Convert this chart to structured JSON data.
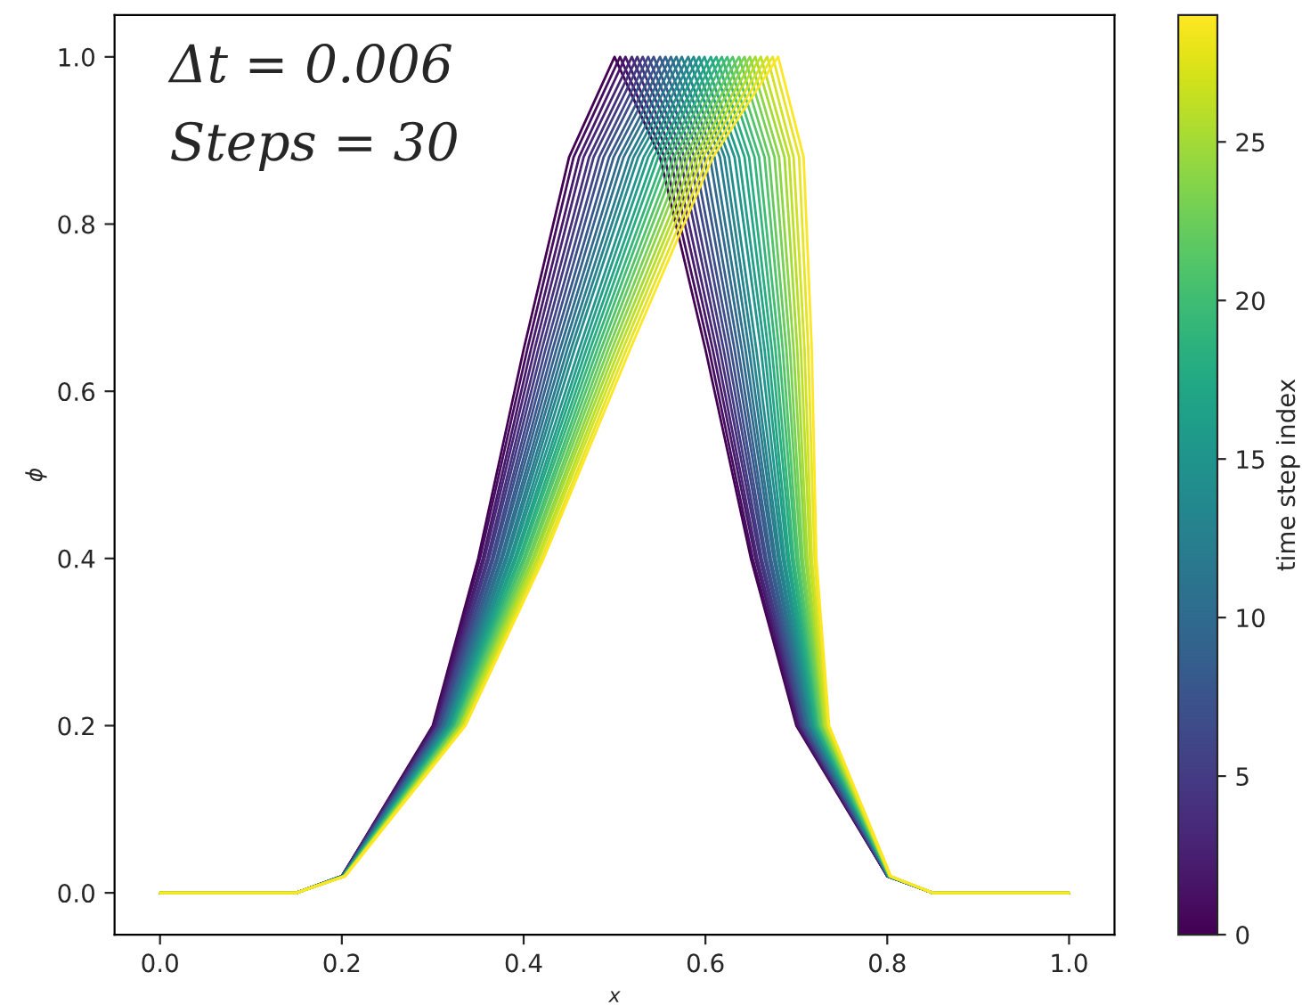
{
  "chart_data": {
    "type": "line",
    "xlabel": "x",
    "ylabel": "ϕ",
    "clabel": "time step index",
    "annotations": [
      "Δt = 0.006",
      "Steps = 30"
    ],
    "xlim": [
      -0.05,
      1.05
    ],
    "ylim": [
      -0.05,
      1.05
    ],
    "xticks": [
      {
        "value": 0,
        "label": "0.0"
      },
      0.2,
      0.4,
      0.6,
      0.8,
      {
        "value": 1,
        "label": "1.0"
      }
    ],
    "yticks": [
      {
        "value": 0,
        "label": "0.0"
      },
      0.2,
      0.4,
      0.6,
      0.8,
      {
        "value": 1,
        "label": "1.0"
      }
    ],
    "clim": [
      0,
      29
    ],
    "cticks": [
      0,
      5,
      10,
      15,
      20,
      25
    ],
    "grid": false,
    "series": [
      {
        "color": "#440154",
        "x": [
          0,
          0.15,
          0.2,
          0.3,
          0.35,
          0.4,
          0.45,
          0.5,
          0.55,
          0.6,
          0.65,
          0.7,
          0.8,
          0.85,
          1
        ],
        "values": [
          0,
          0,
          0.02,
          0.2,
          0.4,
          0.65,
          0.88,
          1.0,
          0.88,
          0.65,
          0.4,
          0.2,
          0.02,
          0,
          0
        ]
      },
      {
        "color": "#450d5f",
        "x": [
          0,
          0.15,
          0.2,
          0.301,
          0.352,
          0.404,
          0.455,
          0.506,
          0.555,
          0.604,
          0.652,
          0.701,
          0.8,
          0.85,
          1
        ],
        "values": [
          0,
          0,
          0.02,
          0.2,
          0.4,
          0.65,
          0.88,
          1.0,
          0.88,
          0.65,
          0.4,
          0.2,
          0.02,
          0,
          0
        ]
      },
      {
        "color": "#47196b",
        "x": [
          0,
          0.15,
          0.2,
          0.302,
          0.355,
          0.408,
          0.461,
          0.512,
          0.561,
          0.608,
          0.655,
          0.702,
          0.8,
          0.85,
          1
        ],
        "values": [
          0,
          0,
          0.02,
          0.2,
          0.4,
          0.65,
          0.88,
          1.0,
          0.88,
          0.65,
          0.4,
          0.2,
          0.02,
          0,
          0
        ]
      },
      {
        "color": "#482576",
        "x": [
          0,
          0.15,
          0.2,
          0.304,
          0.357,
          0.412,
          0.466,
          0.519,
          0.566,
          0.612,
          0.657,
          0.704,
          0.8,
          0.85,
          1
        ],
        "values": [
          0,
          0,
          0.02,
          0.2,
          0.4,
          0.65,
          0.88,
          1.0,
          0.88,
          0.65,
          0.4,
          0.2,
          0.02,
          0,
          0
        ]
      },
      {
        "color": "#45307c",
        "x": [
          0,
          0.15,
          0.2,
          0.305,
          0.36,
          0.416,
          0.472,
          0.525,
          0.572,
          0.616,
          0.66,
          0.705,
          0.8,
          0.85,
          1
        ],
        "values": [
          0,
          0,
          0.02,
          0.2,
          0.4,
          0.65,
          0.88,
          1.0,
          0.88,
          0.65,
          0.4,
          0.2,
          0.02,
          0,
          0
        ]
      },
      {
        "color": "#433b82",
        "x": [
          0,
          0.15,
          0.201,
          0.306,
          0.362,
          0.42,
          0.477,
          0.531,
          0.577,
          0.62,
          0.662,
          0.706,
          0.801,
          0.85,
          1
        ],
        "values": [
          0,
          0,
          0.02,
          0.2,
          0.4,
          0.65,
          0.88,
          1.0,
          0.88,
          0.65,
          0.4,
          0.2,
          0.02,
          0,
          0
        ]
      },
      {
        "color": "#404687",
        "x": [
          0,
          0.15,
          0.201,
          0.307,
          0.365,
          0.424,
          0.483,
          0.537,
          0.583,
          0.624,
          0.665,
          0.707,
          0.801,
          0.85,
          1
        ],
        "values": [
          0,
          0,
          0.02,
          0.2,
          0.4,
          0.65,
          0.88,
          1.0,
          0.88,
          0.65,
          0.4,
          0.2,
          0.02,
          0,
          0
        ]
      },
      {
        "color": "#3c4f89",
        "x": [
          0,
          0.15,
          0.201,
          0.309,
          0.367,
          0.428,
          0.488,
          0.543,
          0.588,
          0.628,
          0.667,
          0.709,
          0.801,
          0.85,
          1
        ],
        "values": [
          0,
          0,
          0.02,
          0.2,
          0.4,
          0.65,
          0.88,
          1.0,
          0.88,
          0.65,
          0.4,
          0.2,
          0.02,
          0,
          0
        ]
      },
      {
        "color": "#38588c",
        "x": [
          0,
          0.15,
          0.201,
          0.31,
          0.37,
          0.432,
          0.494,
          0.55,
          0.594,
          0.632,
          0.67,
          0.71,
          0.801,
          0.85,
          1
        ],
        "values": [
          0,
          0,
          0.02,
          0.2,
          0.4,
          0.65,
          0.88,
          1.0,
          0.88,
          0.65,
          0.4,
          0.2,
          0.02,
          0,
          0
        ]
      },
      {
        "color": "#34628d",
        "x": [
          0,
          0.15,
          0.201,
          0.311,
          0.372,
          0.436,
          0.499,
          0.556,
          0.599,
          0.636,
          0.672,
          0.711,
          0.801,
          0.85,
          1
        ],
        "values": [
          0,
          0,
          0.02,
          0.2,
          0.4,
          0.65,
          0.88,
          1.0,
          0.88,
          0.65,
          0.4,
          0.2,
          0.02,
          0,
          0
        ]
      },
      {
        "color": "#306a8d",
        "x": [
          0,
          0.15,
          0.201,
          0.312,
          0.375,
          0.44,
          0.505,
          0.562,
          0.605,
          0.64,
          0.675,
          0.712,
          0.801,
          0.85,
          1
        ],
        "values": [
          0,
          0,
          0.02,
          0.2,
          0.4,
          0.65,
          0.88,
          1.0,
          0.88,
          0.65,
          0.4,
          0.2,
          0.02,
          0,
          0
        ]
      },
      {
        "color": "#2c738e",
        "x": [
          0,
          0.15,
          0.201,
          0.314,
          0.377,
          0.444,
          0.51,
          0.568,
          0.61,
          0.644,
          0.677,
          0.714,
          0.801,
          0.85,
          1
        ],
        "values": [
          0,
          0,
          0.02,
          0.2,
          0.4,
          0.65,
          0.88,
          1.0,
          0.88,
          0.65,
          0.4,
          0.2,
          0.02,
          0,
          0
        ]
      },
      {
        "color": "#297b8e",
        "x": [
          0,
          0.15,
          0.201,
          0.315,
          0.38,
          0.448,
          0.516,
          0.574,
          0.616,
          0.648,
          0.68,
          0.715,
          0.801,
          0.85,
          1
        ],
        "values": [
          0,
          0,
          0.02,
          0.2,
          0.4,
          0.65,
          0.88,
          1.0,
          0.88,
          0.65,
          0.4,
          0.2,
          0.02,
          0,
          0
        ]
      },
      {
        "color": "#26848d",
        "x": [
          0,
          0.15,
          0.202,
          0.316,
          0.382,
          0.452,
          0.521,
          0.581,
          0.621,
          0.652,
          0.682,
          0.716,
          0.802,
          0.85,
          1
        ],
        "values": [
          0,
          0,
          0.02,
          0.2,
          0.4,
          0.65,
          0.88,
          1.0,
          0.88,
          0.65,
          0.4,
          0.2,
          0.02,
          0,
          0
        ]
      },
      {
        "color": "#228d8c",
        "x": [
          0,
          0.15,
          0.202,
          0.317,
          0.385,
          0.456,
          0.526,
          0.587,
          0.626,
          0.656,
          0.685,
          0.717,
          0.802,
          0.85,
          1
        ],
        "values": [
          0,
          0,
          0.02,
          0.2,
          0.4,
          0.65,
          0.88,
          1.0,
          0.88,
          0.65,
          0.4,
          0.2,
          0.02,
          0,
          0
        ]
      },
      {
        "color": "#21958b",
        "x": [
          0,
          0.15,
          0.202,
          0.319,
          0.387,
          0.461,
          0.532,
          0.593,
          0.632,
          0.661,
          0.687,
          0.719,
          0.802,
          0.85,
          1
        ],
        "values": [
          0,
          0,
          0.02,
          0.2,
          0.4,
          0.65,
          0.88,
          1.0,
          0.88,
          0.65,
          0.4,
          0.2,
          0.02,
          0,
          0
        ]
      },
      {
        "color": "#229d88",
        "x": [
          0,
          0.15,
          0.202,
          0.32,
          0.39,
          0.465,
          0.537,
          0.599,
          0.637,
          0.665,
          0.69,
          0.72,
          0.802,
          0.85,
          1
        ],
        "values": [
          0,
          0,
          0.02,
          0.2,
          0.4,
          0.65,
          0.88,
          1.0,
          0.88,
          0.65,
          0.4,
          0.2,
          0.02,
          0,
          0
        ]
      },
      {
        "color": "#22a585",
        "x": [
          0,
          0.15,
          0.202,
          0.321,
          0.392,
          0.469,
          0.543,
          0.606,
          0.643,
          0.669,
          0.692,
          0.721,
          0.802,
          0.85,
          1
        ],
        "values": [
          0,
          0,
          0.02,
          0.2,
          0.4,
          0.65,
          0.88,
          1.0,
          0.88,
          0.65,
          0.4,
          0.2,
          0.02,
          0,
          0
        ]
      },
      {
        "color": "#29ad80",
        "x": [
          0,
          0.15,
          0.202,
          0.322,
          0.395,
          0.473,
          0.548,
          0.612,
          0.648,
          0.673,
          0.695,
          0.722,
          0.802,
          0.85,
          1
        ],
        "values": [
          0,
          0,
          0.02,
          0.2,
          0.4,
          0.65,
          0.88,
          1.0,
          0.88,
          0.65,
          0.4,
          0.2,
          0.02,
          0,
          0
        ]
      },
      {
        "color": "#35b579",
        "x": [
          0,
          0.15,
          0.202,
          0.324,
          0.397,
          0.477,
          0.554,
          0.618,
          0.654,
          0.677,
          0.697,
          0.724,
          0.802,
          0.85,
          1
        ],
        "values": [
          0,
          0,
          0.02,
          0.2,
          0.4,
          0.65,
          0.88,
          1.0,
          0.88,
          0.65,
          0.4,
          0.2,
          0.02,
          0,
          0
        ]
      },
      {
        "color": "#40bd72",
        "x": [
          0,
          0.15,
          0.202,
          0.325,
          0.4,
          0.481,
          0.559,
          0.624,
          0.659,
          0.681,
          0.7,
          0.725,
          0.802,
          0.85,
          1
        ],
        "values": [
          0,
          0,
          0.02,
          0.2,
          0.4,
          0.65,
          0.88,
          1.0,
          0.88,
          0.65,
          0.4,
          0.2,
          0.02,
          0,
          0
        ]
      },
      {
        "color": "#51c368",
        "x": [
          0,
          0.15,
          0.203,
          0.326,
          0.402,
          0.485,
          0.565,
          0.63,
          0.665,
          0.685,
          0.702,
          0.726,
          0.803,
          0.85,
          1
        ],
        "values": [
          0,
          0,
          0.02,
          0.2,
          0.4,
          0.65,
          0.88,
          1.0,
          0.88,
          0.65,
          0.4,
          0.2,
          0.02,
          0,
          0
        ]
      },
      {
        "color": "#64ca5e",
        "x": [
          0,
          0.15,
          0.203,
          0.327,
          0.405,
          0.489,
          0.57,
          0.637,
          0.67,
          0.689,
          0.705,
          0.727,
          0.803,
          0.85,
          1
        ],
        "values": [
          0,
          0,
          0.02,
          0.2,
          0.4,
          0.65,
          0.88,
          1.0,
          0.88,
          0.65,
          0.4,
          0.2,
          0.02,
          0,
          0
        ]
      },
      {
        "color": "#76d053",
        "x": [
          0,
          0.15,
          0.203,
          0.329,
          0.407,
          0.493,
          0.576,
          0.643,
          0.676,
          0.693,
          0.707,
          0.729,
          0.803,
          0.85,
          1
        ],
        "values": [
          0,
          0,
          0.02,
          0.2,
          0.4,
          0.65,
          0.88,
          1.0,
          0.88,
          0.65,
          0.4,
          0.2,
          0.02,
          0,
          0
        ]
      },
      {
        "color": "#8cd545",
        "x": [
          0,
          0.15,
          0.203,
          0.33,
          0.41,
          0.497,
          0.581,
          0.649,
          0.681,
          0.697,
          0.71,
          0.73,
          0.803,
          0.85,
          1
        ],
        "values": [
          0,
          0,
          0.02,
          0.2,
          0.4,
          0.65,
          0.88,
          1.0,
          0.88,
          0.65,
          0.4,
          0.2,
          0.02,
          0,
          0
        ]
      },
      {
        "color": "#a4da34",
        "x": [
          0,
          0.15,
          0.203,
          0.331,
          0.412,
          0.501,
          0.587,
          0.655,
          0.687,
          0.701,
          0.712,
          0.731,
          0.803,
          0.85,
          1
        ],
        "values": [
          0,
          0,
          0.02,
          0.2,
          0.4,
          0.65,
          0.88,
          1.0,
          0.88,
          0.65,
          0.4,
          0.2,
          0.02,
          0,
          0
        ]
      },
      {
        "color": "#bbde27",
        "x": [
          0,
          0.15,
          0.203,
          0.332,
          0.415,
          0.505,
          0.592,
          0.661,
          0.692,
          0.705,
          0.715,
          0.732,
          0.803,
          0.85,
          1
        ],
        "values": [
          0,
          0,
          0.02,
          0.2,
          0.4,
          0.65,
          0.88,
          1.0,
          0.88,
          0.65,
          0.4,
          0.2,
          0.02,
          0,
          0
        ]
      },
      {
        "color": "#d1e126",
        "x": [
          0,
          0.15,
          0.203,
          0.334,
          0.417,
          0.509,
          0.597,
          0.668,
          0.697,
          0.709,
          0.717,
          0.734,
          0.803,
          0.85,
          1
        ],
        "values": [
          0,
          0,
          0.02,
          0.2,
          0.4,
          0.65,
          0.88,
          1.0,
          0.88,
          0.65,
          0.4,
          0.2,
          0.02,
          0,
          0
        ]
      },
      {
        "color": "#e7e425",
        "x": [
          0,
          0.15,
          0.203,
          0.335,
          0.42,
          0.513,
          0.603,
          0.674,
          0.703,
          0.713,
          0.72,
          0.735,
          0.803,
          0.85,
          1
        ],
        "values": [
          0,
          0,
          0.02,
          0.2,
          0.4,
          0.65,
          0.88,
          1.0,
          0.88,
          0.65,
          0.4,
          0.2,
          0.02,
          0,
          0
        ]
      },
      {
        "color": "#fde725",
        "x": [
          0,
          0.15,
          0.204,
          0.336,
          0.422,
          0.517,
          0.608,
          0.68,
          0.708,
          0.717,
          0.722,
          0.736,
          0.804,
          0.85,
          1
        ],
        "values": [
          0,
          0,
          0.02,
          0.2,
          0.4,
          0.65,
          0.88,
          1.0,
          0.88,
          0.65,
          0.4,
          0.2,
          0.02,
          0,
          0
        ]
      }
    ]
  }
}
